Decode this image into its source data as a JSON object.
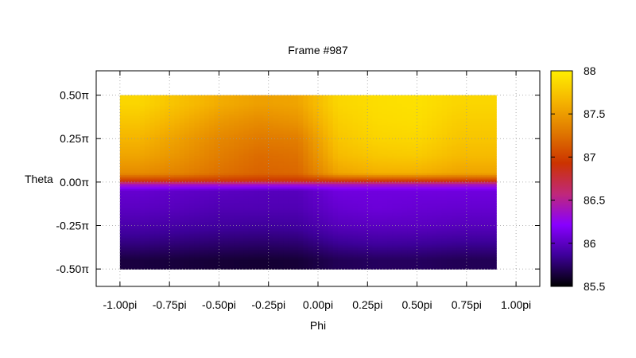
{
  "chart_data": {
    "type": "heatmap",
    "title": "Frame #987",
    "xlabel": "Phi",
    "ylabel": "Theta",
    "xlim": [
      -1.12,
      1.12
    ],
    "ylim": [
      -0.6,
      0.64
    ],
    "grid": true,
    "x_ticks": [
      {
        "v": -1.0,
        "label": "-1.00pi"
      },
      {
        "v": -0.75,
        "label": "-0.75pi"
      },
      {
        "v": -0.5,
        "label": "-0.50pi"
      },
      {
        "v": -0.25,
        "label": "-0.25pi"
      },
      {
        "v": 0.0,
        "label": "0.00pi"
      },
      {
        "v": 0.25,
        "label": "0.25pi"
      },
      {
        "v": 0.5,
        "label": "0.50pi"
      },
      {
        "v": 0.75,
        "label": "0.75pi"
      },
      {
        "v": 1.0,
        "label": "1.00pi"
      }
    ],
    "y_ticks": [
      {
        "v": 0.5,
        "label": "0.50π"
      },
      {
        "v": 0.25,
        "label": "0.25π"
      },
      {
        "v": 0.0,
        "label": "0.00π"
      },
      {
        "v": -0.25,
        "label": "-0.25π"
      },
      {
        "v": -0.5,
        "label": "-0.50π"
      }
    ],
    "data_extent": {
      "x": [
        -1.0,
        0.9
      ],
      "y": [
        -0.5,
        0.5
      ]
    },
    "colorbar": {
      "range": [
        85.5,
        88.0
      ],
      "ticks": [
        {
          "v": 85.5,
          "label": "85.5"
        },
        {
          "v": 86.0,
          "label": "86"
        },
        {
          "v": 86.5,
          "label": "86.5"
        },
        {
          "v": 87.0,
          "label": "87"
        },
        {
          "v": 87.5,
          "label": "87.5"
        },
        {
          "v": 88.0,
          "label": "88"
        }
      ],
      "colors": [
        "#000000",
        "#3d0099",
        "#8800ff",
        "#c0287a",
        "#cc3300",
        "#e07800",
        "#f5b400",
        "#ffee00"
      ]
    },
    "phi_centers": [
      -0.9,
      -0.7,
      -0.5,
      -0.3,
      -0.1,
      0.1,
      0.3,
      0.5,
      0.7
    ],
    "theta_centers": [
      0.45,
      0.35,
      0.25,
      0.15,
      0.05,
      0.01,
      -0.01,
      -0.05,
      -0.15,
      -0.25,
      -0.35,
      -0.45
    ],
    "values": [
      [
        87.85,
        87.72,
        87.6,
        87.52,
        87.55,
        87.85,
        87.9,
        87.92,
        87.85
      ],
      [
        87.75,
        87.62,
        87.48,
        87.4,
        87.45,
        87.8,
        87.88,
        87.9,
        87.8
      ],
      [
        87.65,
        87.52,
        87.38,
        87.3,
        87.32,
        87.75,
        87.84,
        87.86,
        87.75
      ],
      [
        87.55,
        87.45,
        87.32,
        87.22,
        87.25,
        87.68,
        87.76,
        87.78,
        87.68
      ],
      [
        87.4,
        87.35,
        87.25,
        87.18,
        87.2,
        87.55,
        87.62,
        87.62,
        87.55
      ],
      [
        87.0,
        87.0,
        86.98,
        86.96,
        86.96,
        87.02,
        87.02,
        87.02,
        87.02
      ],
      [
        86.45,
        86.45,
        86.45,
        86.44,
        86.44,
        86.45,
        86.45,
        86.45,
        86.45
      ],
      [
        86.05,
        86.02,
        86.0,
        85.98,
        85.98,
        86.1,
        86.1,
        86.1,
        86.1
      ],
      [
        86.0,
        85.98,
        85.95,
        85.95,
        85.95,
        86.05,
        86.08,
        86.06,
        86.05
      ],
      [
        85.92,
        85.9,
        85.88,
        85.87,
        85.88,
        85.98,
        86.0,
        86.0,
        85.98
      ],
      [
        85.8,
        85.78,
        85.76,
        85.75,
        85.76,
        85.85,
        85.88,
        85.87,
        85.85
      ],
      [
        85.65,
        85.64,
        85.63,
        85.62,
        85.63,
        85.7,
        85.72,
        85.72,
        85.7
      ]
    ]
  }
}
